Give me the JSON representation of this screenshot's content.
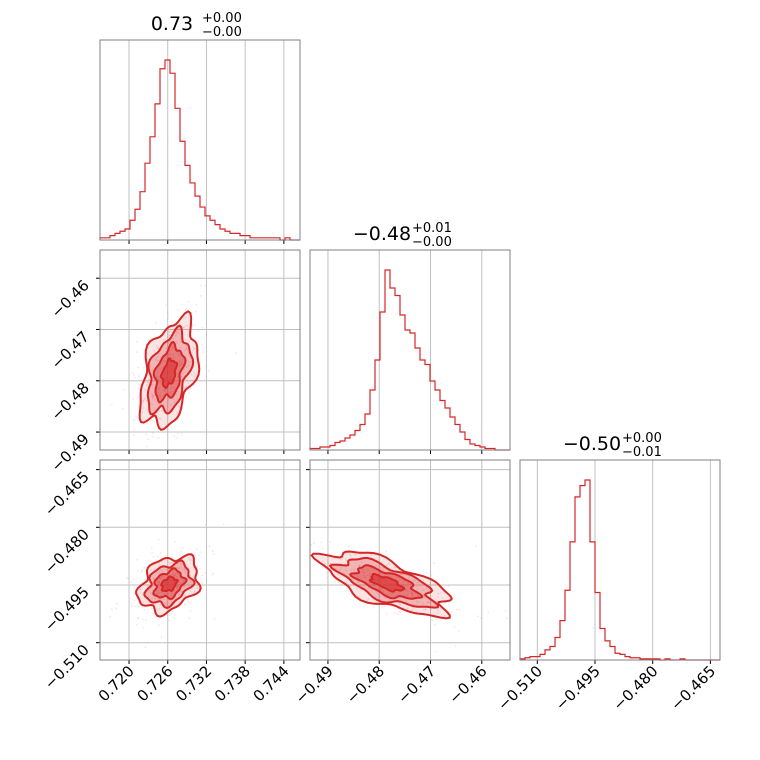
{
  "chart_data": {
    "type": "corner",
    "colors": {
      "main": "#d62728",
      "frame": "#808080",
      "grid": "#c0c0c0"
    },
    "params": [
      {
        "name": "p0",
        "median": 0.7262,
        "range": [
          0.7155,
          0.7465
        ],
        "ticks": [
          0.72,
          0.726,
          0.732,
          0.738,
          0.744
        ],
        "tick_labels": [
          "0.720",
          "0.726",
          "0.732",
          "0.738",
          "0.744"
        ],
        "title": {
          "value": "0.73",
          "plus": "+0.00",
          "minus": "−0.00"
        },
        "hist": [
          1,
          1,
          2,
          3,
          4,
          5,
          9,
          14,
          22,
          35,
          47,
          62,
          78,
          82,
          76,
          60,
          45,
          34,
          26,
          20,
          15,
          11,
          9,
          7,
          5,
          4,
          3,
          3,
          2,
          2,
          1,
          1,
          1,
          1,
          1,
          1,
          0,
          1,
          0,
          0
        ]
      },
      {
        "name": "p1",
        "median": -0.4786,
        "range": [
          -0.4935,
          -0.4545
        ],
        "ticks": [
          -0.49,
          -0.48,
          -0.47,
          -0.46
        ],
        "tick_labels": [
          "−0.49",
          "−0.48",
          "−0.47",
          "−0.46"
        ],
        "tick_labels_y": [
          "−0.49",
          "−0.48",
          "−0.47",
          "−0.46"
        ],
        "title": {
          "value": "−0.48",
          "plus": "+0.01",
          "minus": "−0.00"
        },
        "hist": [
          1,
          1,
          2,
          2,
          3,
          5,
          6,
          8,
          10,
          13,
          17,
          24,
          40,
          60,
          92,
          120,
          108,
          103,
          90,
          80,
          78,
          68,
          60,
          57,
          46,
          40,
          33,
          28,
          22,
          17,
          12,
          7,
          4,
          3,
          2,
          1,
          1,
          0,
          0,
          0
        ]
      },
      {
        "name": "p2",
        "median": -0.4945,
        "range": [
          -0.5145,
          -0.4625
        ],
        "ticks": [
          -0.51,
          -0.495,
          -0.48,
          -0.465
        ],
        "tick_labels": [
          "−0.510",
          "−0.495",
          "−0.480",
          "−0.465"
        ],
        "tick_labels_y": [
          "−0.510",
          "−0.495",
          "−0.480",
          "−0.465"
        ],
        "title": {
          "value": "−0.50",
          "plus": "+0.00",
          "minus": "−0.01"
        },
        "hist": [
          1,
          2,
          3,
          3,
          5,
          9,
          12,
          20,
          35,
          62,
          105,
          145,
          155,
          160,
          105,
          60,
          28,
          17,
          12,
          6,
          5,
          3,
          2,
          2,
          1,
          1,
          1,
          1,
          0,
          1,
          0,
          0,
          1,
          0,
          0,
          0,
          0,
          0,
          0,
          0
        ]
      }
    ],
    "pairs": [
      {
        "x": 0,
        "y": 1,
        "center": [
          0.7262,
          -0.4785
        ],
        "sx": 0.0022,
        "sy": 0.0052,
        "rho": 0.4
      },
      {
        "x": 0,
        "y": 2,
        "center": [
          0.7262,
          -0.4948
        ],
        "sx": 0.0023,
        "sy": 0.0036,
        "rho": 0.3
      },
      {
        "x": 1,
        "y": 2,
        "center": [
          -0.4786,
          -0.4945
        ],
        "sx": 0.0062,
        "sy": 0.0041,
        "rho": -0.68
      }
    ],
    "grid": true,
    "legend": "none"
  }
}
